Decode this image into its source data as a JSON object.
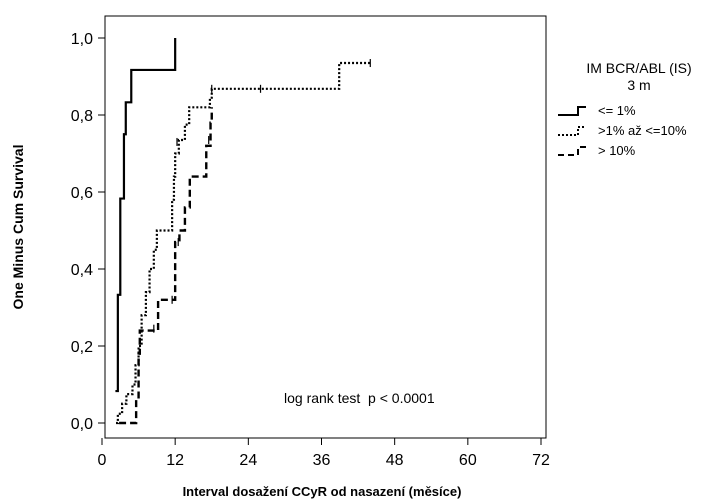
{
  "chart_data": {
    "type": "line",
    "subtype": "kaplan-meier-step",
    "xlabel": "Interval dosažení CCyR od nasazení (měsíce)",
    "ylabel": "One Minus Cum Survival",
    "xlim": [
      0,
      72
    ],
    "ylim": [
      0.0,
      1.0
    ],
    "x_ticks": [
      0,
      12,
      24,
      36,
      48,
      60,
      72
    ],
    "y_ticks": [
      0.0,
      0.2,
      0.4,
      0.6,
      0.8,
      1.0
    ],
    "x_tick_labels": [
      "0",
      "12",
      "24",
      "36",
      "48",
      "60",
      "72"
    ],
    "y_tick_labels": [
      "0,0",
      "0,2",
      "0,4",
      "0,6",
      "0,8",
      "1,0"
    ],
    "annotation": "log rank test  p < 0.0001",
    "legend": {
      "title_line1": "IM BCR/ABL (IS)",
      "title_line2": "3 m",
      "placement": "right"
    },
    "series": [
      {
        "name": "<= 1%",
        "style": "solid",
        "steps": [
          [
            2.2,
            0.083
          ],
          [
            2.6,
            0.333
          ],
          [
            3.0,
            0.583
          ],
          [
            3.6,
            0.75
          ],
          [
            3.9,
            0.833
          ],
          [
            4.8,
            0.917
          ],
          [
            12.0,
            1.0
          ]
        ],
        "end_x": 12.0,
        "censored": []
      },
      {
        "name": ">1% až <=10%",
        "style": "dotted",
        "steps": [
          [
            2.3,
            0.0
          ],
          [
            2.6,
            0.024
          ],
          [
            3.3,
            0.05
          ],
          [
            4.0,
            0.075
          ],
          [
            5.0,
            0.1
          ],
          [
            5.5,
            0.15
          ],
          [
            6.0,
            0.2
          ],
          [
            6.5,
            0.28
          ],
          [
            7.2,
            0.34
          ],
          [
            7.8,
            0.4
          ],
          [
            8.5,
            0.45
          ],
          [
            9.0,
            0.5
          ],
          [
            11.5,
            0.58
          ],
          [
            11.8,
            0.64
          ],
          [
            12.0,
            0.7
          ],
          [
            12.6,
            0.735
          ],
          [
            13.6,
            0.775
          ],
          [
            14.3,
            0.82
          ],
          [
            17.7,
            0.845
          ],
          [
            18.0,
            0.868
          ],
          [
            38.9,
            0.935
          ]
        ],
        "end_x": 44.0,
        "censored": [
          [
            12.3,
            0.73
          ],
          [
            18.0,
            0.868
          ],
          [
            26.0,
            0.868
          ],
          [
            44.0,
            0.935
          ]
        ]
      },
      {
        "name": "> 10%",
        "style": "dashed",
        "steps": [
          [
            2.8,
            0.0
          ],
          [
            5.6,
            0.06
          ],
          [
            6.0,
            0.18
          ],
          [
            6.2,
            0.24
          ],
          [
            9.2,
            0.32
          ],
          [
            12.0,
            0.47
          ],
          [
            12.7,
            0.5
          ],
          [
            13.6,
            0.56
          ],
          [
            14.4,
            0.64
          ],
          [
            17.1,
            0.72
          ],
          [
            17.8,
            0.78
          ],
          [
            18.0,
            0.82
          ]
        ],
        "end_x": 18.0,
        "censored": [
          [
            8.5,
            0.245
          ],
          [
            11.5,
            0.32
          ],
          [
            12.5,
            0.47
          ],
          [
            17.5,
            0.735
          ]
        ]
      }
    ]
  }
}
